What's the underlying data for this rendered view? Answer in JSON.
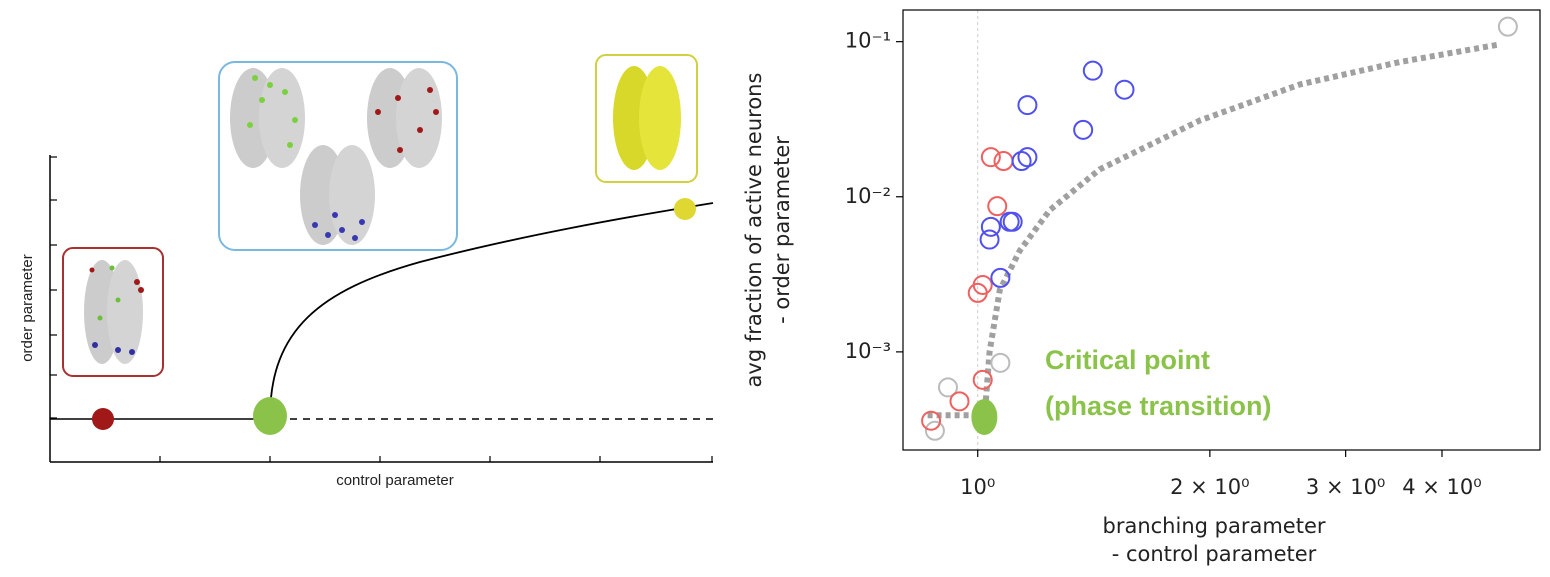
{
  "diagram": {
    "x_label": "control parameter",
    "y_label": "order parameter"
  },
  "chart_data": {
    "type": "scatter",
    "xscale": "log",
    "yscale": "log",
    "xlim": [
      0.8,
      5.36
    ],
    "ylim": [
      0.000233,
      0.16
    ],
    "xticks": [
      {
        "value": 1,
        "label": "10⁰"
      },
      {
        "value": 2,
        "label": "2 × 10⁰"
      },
      {
        "value": 3,
        "label": "3 × 10⁰"
      },
      {
        "value": 4,
        "label": "4 × 10⁰"
      }
    ],
    "yticks": [
      {
        "value": 0.001,
        "label": "10⁻³"
      },
      {
        "value": 0.01,
        "label": "10⁻²"
      },
      {
        "value": 0.1,
        "label": "10⁻¹"
      }
    ],
    "vline": 1,
    "x_label": [
      "branching parameter",
      "- control parameter"
    ],
    "y_label": [
      "avg fraction of active neurons",
      "- order parameter"
    ],
    "annotation": [
      "Critical point",
      "(phase transition)"
    ],
    "series": [
      {
        "color": "#bbbbbb",
        "marker": "open",
        "x": [
          4.87,
          1.07,
          0.915,
          0.88
        ],
        "values": [
          0.125,
          0.00085,
          0.00059,
          0.00031
        ]
      },
      {
        "color": "#f06060",
        "marker": "open",
        "x": [
          0.87,
          0.947,
          1.015,
          1.0,
          1.015,
          1.04,
          1.08,
          1.06
        ],
        "values": [
          0.00036,
          0.00048,
          0.00066,
          0.0024,
          0.0027,
          0.018,
          0.017,
          0.0087
        ]
      },
      {
        "color": "#5050ee",
        "marker": "open",
        "x": [
          1.036,
          1.04,
          1.1,
          1.11,
          1.07,
          1.14,
          1.16,
          1.16,
          1.37,
          1.41,
          1.55
        ],
        "values": [
          0.0053,
          0.0064,
          0.0069,
          0.0069,
          0.003,
          0.017,
          0.018,
          0.039,
          0.027,
          0.065,
          0.049
        ]
      },
      {
        "color": "#a0a0a0",
        "style": "dotted",
        "x": [
          0.861,
          1.021,
          1.036,
          1.068,
          1.134,
          1.24,
          1.439,
          1.94,
          2.617,
          3.53,
          4.75
        ],
        "values": [
          0.00039,
          0.00039,
          0.001,
          0.0025,
          0.0045,
          0.0082,
          0.015,
          0.031,
          0.053,
          0.074,
          0.096
        ]
      },
      {
        "color": "#8bc34a",
        "marker": "filled",
        "x": [
          1.02
        ],
        "values": [
          0.00038
        ]
      }
    ]
  }
}
